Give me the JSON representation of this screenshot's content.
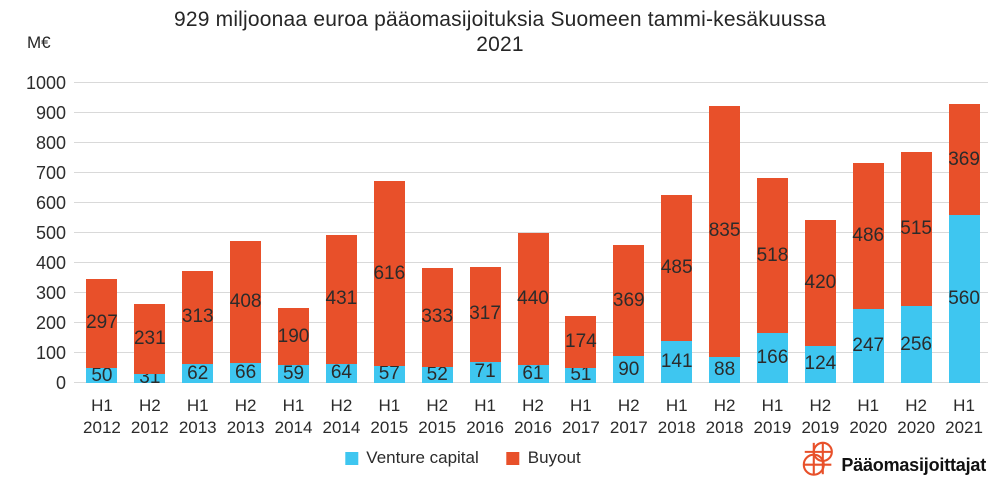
{
  "chart_data": {
    "type": "bar",
    "stacked": true,
    "title_line1": "929 miljoonaa euroa pääomasijoituksia Suomeen tammi-kesäkuussa",
    "title_line2": "2021",
    "unit_label": "M€",
    "categories": [
      "H1 2012",
      "H2 2012",
      "H1 2013",
      "H2 2013",
      "H1 2014",
      "H2 2014",
      "H1 2015",
      "H2 2015",
      "H1 2016",
      "H2 2016",
      "H1 2017",
      "H2 2017",
      "H1 2018",
      "H2 2018",
      "H1 2019",
      "H2 2019",
      "H1 2020",
      "H2 2020",
      "H1 2021"
    ],
    "series": [
      {
        "name": "Venture capital",
        "color": "#3ec6f0",
        "values": [
          50,
          31,
          62,
          66,
          59,
          64,
          57,
          52,
          71,
          61,
          51,
          90,
          141,
          88,
          166,
          124,
          247,
          256,
          560
        ]
      },
      {
        "name": "Buyout",
        "color": "#e8502a",
        "values": [
          297,
          231,
          313,
          408,
          190,
          431,
          616,
          333,
          317,
          440,
          174,
          369,
          485,
          835,
          518,
          420,
          486,
          515,
          369
        ]
      }
    ],
    "ylim": [
      0,
      1000
    ],
    "ytick_step": 100,
    "grid": "horizontal",
    "legend_position": "bottom-center",
    "value_label_color": "#2b2b2b",
    "gridline_color": "#d9d9d9"
  },
  "logo": {
    "text": "Pääomasijoittajat",
    "icon": "globe-grid-icon",
    "color": "#e8502a"
  }
}
